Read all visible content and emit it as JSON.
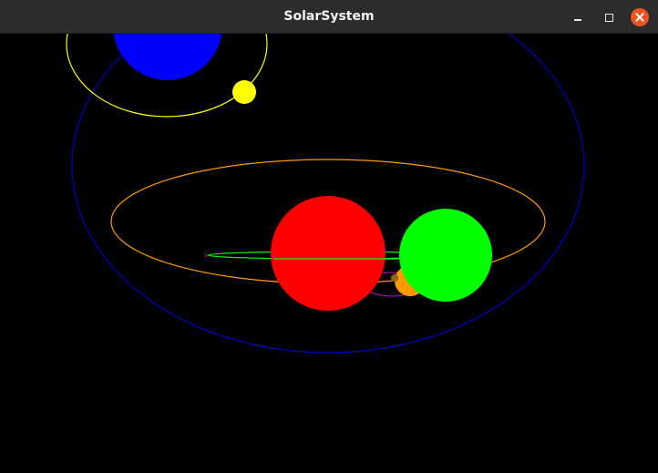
{
  "window": {
    "title": "SolarSystem"
  },
  "controls": {
    "minimize_icon": "minimize-icon",
    "maximize_icon": "maximize-icon",
    "close_icon": "close-icon",
    "close_color": "#e95420"
  },
  "scene": {
    "background": "#000000",
    "colors": {
      "blue_planet": "#0000ff",
      "yellow_moon": "#ffff00",
      "yellow_orbit": "#ffff00",
      "blue_orbit": "#0000cc",
      "orange_orbit": "#ff9900",
      "green_orbit": "#00ff00",
      "purple_orbit": "#cc00cc",
      "red_sun": "#ff0000",
      "green_planet": "#00ff00",
      "orange_planet": "#ff9900",
      "small_planet": "#8a6a1a"
    }
  }
}
